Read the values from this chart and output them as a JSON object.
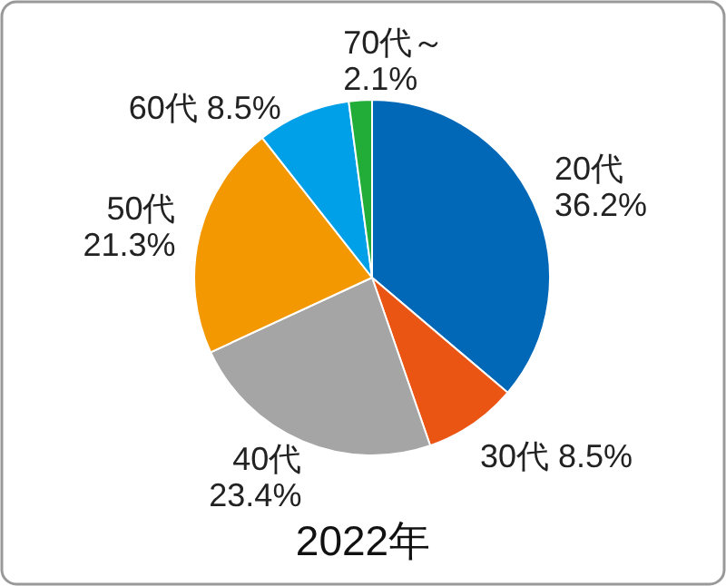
{
  "chart_data": {
    "type": "pie",
    "title": "2022年",
    "categories": [
      "20代",
      "30代",
      "40代",
      "50代",
      "60代",
      "70代～"
    ],
    "values": [
      36.2,
      8.5,
      23.4,
      21.3,
      8.5,
      2.1
    ],
    "colors": [
      "#0068b7",
      "#ea5514",
      "#a5a5a5",
      "#f39800",
      "#00a0e9",
      "#22ac38"
    ],
    "value_labels": [
      "36.2%",
      "8.5%",
      "23.4%",
      "21.3%",
      "8.5%",
      "2.1%"
    ]
  }
}
